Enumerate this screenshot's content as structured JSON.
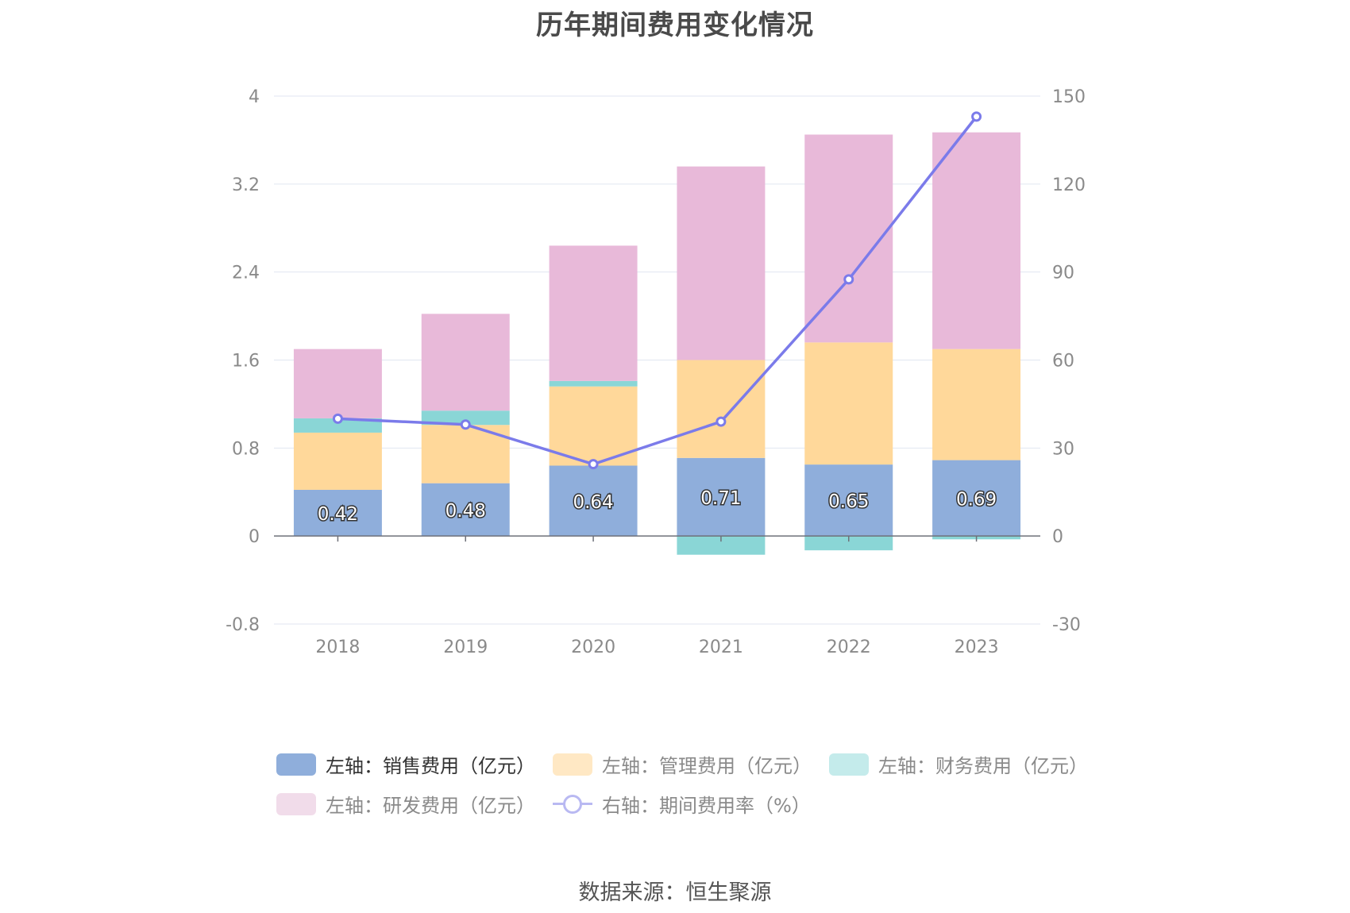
{
  "title": "历年期间费用变化情况",
  "source": "数据来源：恒生聚源",
  "chart_data": {
    "type": "bar",
    "stacked": true,
    "categories": [
      "2018",
      "2019",
      "2020",
      "2021",
      "2022",
      "2023"
    ],
    "y_left": {
      "min": -0.8,
      "max": 4,
      "ticks": [
        "-0.8",
        "0",
        "0.8",
        "1.6",
        "2.4",
        "3.2",
        "4"
      ]
    },
    "y_right": {
      "min": -30,
      "max": 150,
      "ticks": [
        "-30",
        "0",
        "30",
        "60",
        "90",
        "120",
        "150"
      ]
    },
    "grid": true,
    "legend_position": "bottom",
    "series": [
      {
        "name": "左轴：销售费用（亿元）",
        "axis": "left",
        "color": "#8faedb",
        "values": [
          0.42,
          0.48,
          0.64,
          0.71,
          0.65,
          0.69
        ],
        "labels": [
          "0.42",
          "0.48",
          "0.64",
          "0.71",
          "0.65",
          "0.69"
        ],
        "legend_color": "#8faedb"
      },
      {
        "name": "左轴：管理费用（亿元）",
        "axis": "left",
        "color": "#ffd89a",
        "values": [
          0.52,
          0.53,
          0.72,
          0.89,
          1.11,
          1.01
        ],
        "legend_color": "#ffe8c4"
      },
      {
        "name": "左轴：财务费用（亿元）",
        "axis": "left",
        "color": "#8ad6d6",
        "values": [
          0.13,
          0.13,
          0.05,
          -0.17,
          -0.13,
          -0.03
        ],
        "legend_color": "#c4ebeb"
      },
      {
        "name": "左轴：研发费用（亿元）",
        "axis": "left",
        "color": "#e8b9d9",
        "values": [
          0.63,
          0.88,
          1.23,
          1.76,
          1.89,
          1.97
        ],
        "legend_color": "#f1dcea"
      },
      {
        "name": "右轴：期间费用率（%）",
        "axis": "right",
        "type": "line",
        "color": "#7b7bea",
        "values": [
          40,
          38,
          24.5,
          39,
          87.5,
          143
        ],
        "legend_color": "#b9b9f2"
      }
    ]
  }
}
